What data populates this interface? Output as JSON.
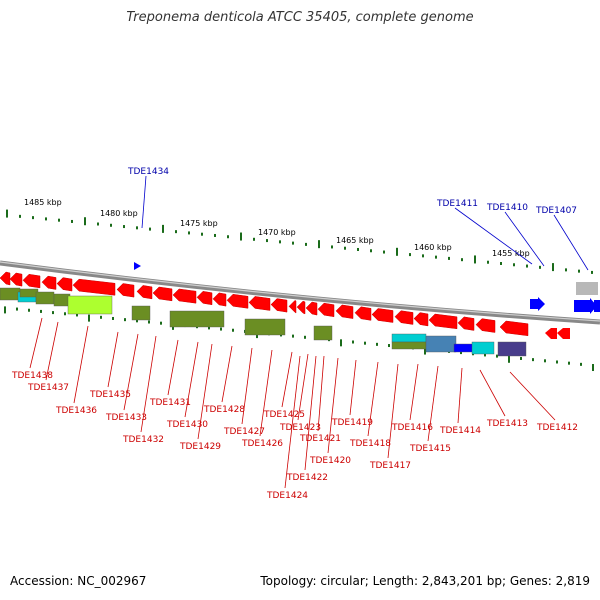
{
  "title": "Treponema denticola ATCC 35405, complete genome",
  "footer": {
    "accession": "Accession: NC_002967",
    "stats": "Topology: circular; Length: 2,843,201 bp; Genes: 2,819"
  },
  "scale": {
    "labels": [
      "1485 kbp",
      "1480 kbp",
      "1475 kbp",
      "1470 kbp",
      "1465 kbp",
      "1460 kbp",
      "1455 kbp"
    ]
  },
  "genes_top": [
    "TDE1434",
    "TDE1411",
    "TDE1410",
    "TDE1407"
  ],
  "genes_bottom": [
    "TDE1438",
    "TDE1437",
    "TDE1436",
    "TDE1435",
    "TDE1433",
    "TDE1432",
    "TDE1431",
    "TDE1430",
    "TDE1429",
    "TDE1428",
    "TDE1427",
    "TDE1426",
    "TDE1425",
    "TDE1423",
    "TDE1424",
    "TDE1422",
    "TDE1421",
    "TDE1420",
    "TDE1419",
    "TDE1418",
    "TDE1417",
    "TDE1416",
    "TDE1415",
    "TDE1414",
    "TDE1413",
    "TDE1412"
  ],
  "colors": {
    "forward_gene": "#0000ff",
    "reverse_gene": "#ff0000",
    "label_red": "#cc0000",
    "label_blue": "#0000aa",
    "backbone": "#888888",
    "cog_olive": "#6b8e23",
    "cog_lime": "#adff2f",
    "cog_cyan": "#00ced1",
    "cog_steel": "#4682b4",
    "cog_navy": "#483d8b"
  }
}
